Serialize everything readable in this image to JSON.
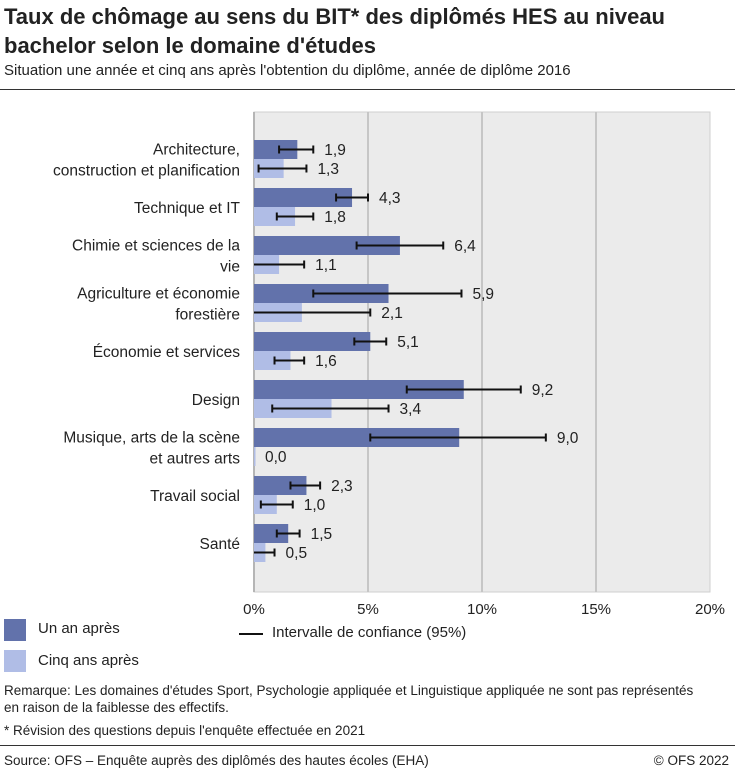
{
  "title": "Taux de chômage au sens du BIT* des diplômés HES au niveau bachelor selon le domaine d'études",
  "subtitle": "Situation une année et cinq ans après l'obtention du diplôme, année de diplôme 2016",
  "chart_data": {
    "type": "bar",
    "orientation": "horizontal",
    "categories": [
      "Architecture, construction et planification",
      "Technique et IT",
      "Chimie et sciences de la vie",
      "Agriculture et économie forestière",
      "Économie et services",
      "Design",
      "Musique, arts de la scène et autres arts",
      "Travail social",
      "Santé"
    ],
    "category_lines": [
      [
        "Architecture,",
        "construction et planification"
      ],
      [
        "Technique et IT"
      ],
      [
        "Chimie et sciences de la",
        "vie"
      ],
      [
        "Agriculture et économie",
        "forestière"
      ],
      [
        "Économie et services"
      ],
      [
        "Design"
      ],
      [
        "Musique, arts de la scène",
        "et autres arts"
      ],
      [
        "Travail social"
      ],
      [
        "Santé"
      ]
    ],
    "series": [
      {
        "name": "Un an après",
        "color": "#6272ab",
        "values": [
          1.9,
          4.3,
          6.4,
          5.9,
          5.1,
          9.2,
          9.0,
          2.3,
          1.5
        ],
        "labels": [
          "1,9",
          "4,3",
          "6,4",
          "5,9",
          "5,1",
          "9,2",
          "9,0",
          "2,3",
          "1,5"
        ],
        "ci": [
          [
            1.1,
            2.6
          ],
          [
            3.6,
            5.0
          ],
          [
            4.5,
            8.3
          ],
          [
            2.6,
            9.1
          ],
          [
            4.4,
            5.8
          ],
          [
            6.7,
            11.7
          ],
          [
            5.1,
            12.8
          ],
          [
            1.6,
            2.9
          ],
          [
            1.0,
            2.0
          ]
        ]
      },
      {
        "name": "Cinq ans après",
        "color": "#b0bde6",
        "values": [
          1.3,
          1.8,
          1.1,
          2.1,
          1.6,
          3.4,
          0.0,
          1.0,
          0.5
        ],
        "labels": [
          "1,3",
          "1,8",
          "1,1",
          "2,1",
          "1,6",
          "3,4",
          "0,0",
          "1,0",
          "0,5"
        ],
        "ci": [
          [
            0.2,
            2.3
          ],
          [
            1.0,
            2.6
          ],
          [
            0.0,
            2.2
          ],
          [
            0.0,
            5.1
          ],
          [
            0.9,
            2.2
          ],
          [
            0.8,
            5.9
          ],
          null,
          [
            0.3,
            1.7
          ],
          [
            0.0,
            0.9
          ]
        ]
      }
    ],
    "xlim": [
      0,
      20
    ],
    "xticks": [
      0,
      5,
      10,
      15,
      20
    ],
    "xtick_labels": [
      "0%",
      "5%",
      "10%",
      "15%",
      "20%"
    ],
    "grid": true,
    "legend_position": "bottom-left",
    "ci_legend": "Intervalle de confiance (95%)"
  },
  "notes": {
    "remark": "Remarque: Les domaines d'études Sport, Psychologie appliquée et Linguistique appliquée ne sont pas représentés en raison de la faiblesse des effectifs.",
    "footnote": "* Révision des questions depuis l'enquête effectuée en 2021",
    "source": "Source: OFS – Enquête auprès des diplômés des hautes écoles (EHA)",
    "copyright": "© OFS 2022"
  }
}
